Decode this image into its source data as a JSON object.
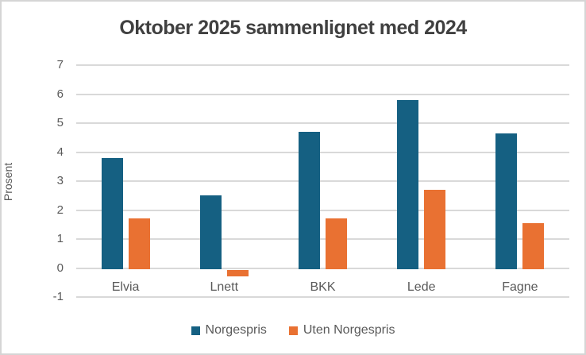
{
  "chart_data": {
    "type": "bar",
    "title": "Oktober 2025 sammenlignet med 2024",
    "xlabel": "",
    "ylabel": "Prosent",
    "categories": [
      "Elvia",
      "Lnett",
      "BKK",
      "Lede",
      "Fagne"
    ],
    "series": [
      {
        "name": "Norgespris",
        "color": "#156082",
        "values": [
          3.8,
          2.5,
          4.7,
          5.8,
          4.65
        ]
      },
      {
        "name": "Uten Norgespris",
        "color": "#E97132",
        "values": [
          1.7,
          -0.3,
          1.7,
          2.7,
          1.55
        ]
      }
    ],
    "ylim": [
      -1,
      7
    ],
    "ytick_step": 1,
    "grid": true,
    "gridline_color": "#D9D9D9",
    "text_color": "#595959",
    "title_color": "#404040",
    "legend_position": "bottom"
  }
}
